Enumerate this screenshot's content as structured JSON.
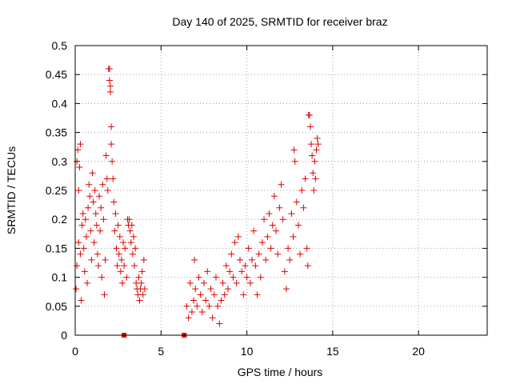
{
  "chart_data": {
    "type": "scatter",
    "title": "Day 140 of 2025, SRMTID for receiver braz",
    "xlabel": "GPS time / hours",
    "ylabel": "SRMTID / TECUs",
    "xlim": [
      0,
      24
    ],
    "ylim": [
      0,
      0.5
    ],
    "x_ticks": [
      0,
      5,
      10,
      15,
      20
    ],
    "x_tick_labels": [
      "0",
      "5",
      "10",
      "15",
      "20"
    ],
    "y_ticks": [
      0,
      0.05,
      0.1,
      0.15,
      0.2,
      0.25,
      0.3,
      0.35,
      0.4,
      0.45,
      0.5
    ],
    "y_tick_labels": [
      "0",
      "0.05",
      "0.1",
      "0.15",
      "0.2",
      "0.25",
      "0.3",
      "0.35",
      "0.4",
      "0.45",
      "0.5"
    ],
    "grid": true,
    "marker": "plus",
    "color": "#e00000",
    "series": [
      {
        "name": "SRMTID",
        "points": [
          [
            0.05,
            0.08
          ],
          [
            0.1,
            0.12
          ],
          [
            0.1,
            0.3
          ],
          [
            0.15,
            0.32
          ],
          [
            0.2,
            0.25
          ],
          [
            0.2,
            0.16
          ],
          [
            0.25,
            0.29
          ],
          [
            0.3,
            0.33
          ],
          [
            0.3,
            0.14
          ],
          [
            0.35,
            0.06
          ],
          [
            0.4,
            0.19
          ],
          [
            0.45,
            0.21
          ],
          [
            0.5,
            0.15
          ],
          [
            0.55,
            0.11
          ],
          [
            0.6,
            0.2
          ],
          [
            0.65,
            0.17
          ],
          [
            0.7,
            0.09
          ],
          [
            0.75,
            0.22
          ],
          [
            0.8,
            0.26
          ],
          [
            0.85,
            0.24
          ],
          [
            0.9,
            0.18
          ],
          [
            0.95,
            0.13
          ],
          [
            1.0,
            0.28
          ],
          [
            1.05,
            0.23
          ],
          [
            1.1,
            0.16
          ],
          [
            1.15,
            0.25
          ],
          [
            1.2,
            0.21
          ],
          [
            1.25,
            0.19
          ],
          [
            1.3,
            0.14
          ],
          [
            1.35,
            0.12
          ],
          [
            1.4,
            0.24
          ],
          [
            1.45,
            0.18
          ],
          [
            1.5,
            0.22
          ],
          [
            1.55,
            0.1
          ],
          [
            1.6,
            0.26
          ],
          [
            1.65,
            0.2
          ],
          [
            1.7,
            0.07
          ],
          [
            1.75,
            0.13
          ],
          [
            1.8,
            0.31
          ],
          [
            1.85,
            0.27
          ],
          [
            1.9,
            0.25
          ],
          [
            1.95,
            0.46
          ],
          [
            2.0,
            0.46
          ],
          [
            2.0,
            0.44
          ],
          [
            2.05,
            0.43
          ],
          [
            2.05,
            0.42
          ],
          [
            2.1,
            0.36
          ],
          [
            2.1,
            0.33
          ],
          [
            2.15,
            0.3
          ],
          [
            2.2,
            0.27
          ],
          [
            2.25,
            0.23
          ],
          [
            2.3,
            0.18
          ],
          [
            2.35,
            0.21
          ],
          [
            2.4,
            0.15
          ],
          [
            2.45,
            0.12
          ],
          [
            2.5,
            0.19
          ],
          [
            2.55,
            0.14
          ],
          [
            2.6,
            0.17
          ],
          [
            2.65,
            0.11
          ],
          [
            2.7,
            0.13
          ],
          [
            2.75,
            0.09
          ],
          [
            2.8,
            0.16
          ],
          [
            2.85,
            0.12
          ],
          [
            2.9,
            0.15
          ],
          [
            3.0,
            0.1
          ],
          [
            3.05,
            0.2
          ],
          [
            3.1,
            0.19
          ],
          [
            3.15,
            0.2
          ],
          [
            3.2,
            0.18
          ],
          [
            3.25,
            0.16
          ],
          [
            3.3,
            0.19
          ],
          [
            3.35,
            0.14
          ],
          [
            3.4,
            0.17
          ],
          [
            3.45,
            0.12
          ],
          [
            3.5,
            0.15
          ],
          [
            3.55,
            0.09
          ],
          [
            3.6,
            0.08
          ],
          [
            3.65,
            0.07
          ],
          [
            3.7,
            0.1
          ],
          [
            3.75,
            0.06
          ],
          [
            3.8,
            0.08
          ],
          [
            3.85,
            0.09
          ],
          [
            3.9,
            0.11
          ],
          [
            3.95,
            0.07
          ],
          [
            4.0,
            0.13
          ],
          [
            4.05,
            0.08
          ],
          [
            6.5,
            0.05
          ],
          [
            6.6,
            0.03
          ],
          [
            6.7,
            0.09
          ],
          [
            6.8,
            0.04
          ],
          [
            6.9,
            0.06
          ],
          [
            6.95,
            0.13
          ],
          [
            7.0,
            0.08
          ],
          [
            7.1,
            0.05
          ],
          [
            7.2,
            0.1
          ],
          [
            7.3,
            0.07
          ],
          [
            7.4,
            0.04
          ],
          [
            7.5,
            0.09
          ],
          [
            7.6,
            0.06
          ],
          [
            7.7,
            0.11
          ],
          [
            7.8,
            0.05
          ],
          [
            7.9,
            0.08
          ],
          [
            8.0,
            0.03
          ],
          [
            8.1,
            0.07
          ],
          [
            8.2,
            0.1
          ],
          [
            8.3,
            0.05
          ],
          [
            8.4,
            0.02
          ],
          [
            8.5,
            0.06
          ],
          [
            8.6,
            0.09
          ],
          [
            8.7,
            0.07
          ],
          [
            8.8,
            0.12
          ],
          [
            8.9,
            0.08
          ],
          [
            9.0,
            0.11
          ],
          [
            9.1,
            0.14
          ],
          [
            9.2,
            0.1
          ],
          [
            9.3,
            0.16
          ],
          [
            9.4,
            0.09
          ],
          [
            9.5,
            0.17
          ],
          [
            9.6,
            0.13
          ],
          [
            9.7,
            0.11
          ],
          [
            9.8,
            0.07
          ],
          [
            9.9,
            0.12
          ],
          [
            10.0,
            0.1
          ],
          [
            10.1,
            0.15
          ],
          [
            10.2,
            0.09
          ],
          [
            10.3,
            0.13
          ],
          [
            10.4,
            0.18
          ],
          [
            10.5,
            0.12
          ],
          [
            10.6,
            0.07
          ],
          [
            10.7,
            0.14
          ],
          [
            10.8,
            0.1
          ],
          [
            10.9,
            0.16
          ],
          [
            11.0,
            0.2
          ],
          [
            11.1,
            0.13
          ],
          [
            11.2,
            0.17
          ],
          [
            11.3,
            0.21
          ],
          [
            11.4,
            0.15
          ],
          [
            11.5,
            0.19
          ],
          [
            11.6,
            0.24
          ],
          [
            11.7,
            0.18
          ],
          [
            11.8,
            0.14
          ],
          [
            11.9,
            0.22
          ],
          [
            12.0,
            0.26
          ],
          [
            12.1,
            0.2
          ],
          [
            12.2,
            0.11
          ],
          [
            12.3,
            0.08
          ],
          [
            12.4,
            0.15
          ],
          [
            12.5,
            0.13
          ],
          [
            12.6,
            0.21
          ],
          [
            12.7,
            0.17
          ],
          [
            12.75,
            0.32
          ],
          [
            12.8,
            0.3
          ],
          [
            12.9,
            0.23
          ],
          [
            13.0,
            0.19
          ],
          [
            13.1,
            0.14
          ],
          [
            13.2,
            0.25
          ],
          [
            13.3,
            0.22
          ],
          [
            13.4,
            0.27
          ],
          [
            13.5,
            0.15
          ],
          [
            13.55,
            0.12
          ],
          [
            13.6,
            0.38
          ],
          [
            13.65,
            0.38
          ],
          [
            13.7,
            0.36
          ],
          [
            13.75,
            0.33
          ],
          [
            13.8,
            0.31
          ],
          [
            13.85,
            0.28
          ],
          [
            13.9,
            0.25
          ],
          [
            13.95,
            0.3
          ],
          [
            14.0,
            0.27
          ],
          [
            14.05,
            0.32
          ],
          [
            14.1,
            0.34
          ],
          [
            14.15,
            0.33
          ]
        ]
      }
    ],
    "markers_on_axis": [
      [
        2.85,
        0
      ],
      [
        6.35,
        0
      ]
    ]
  }
}
